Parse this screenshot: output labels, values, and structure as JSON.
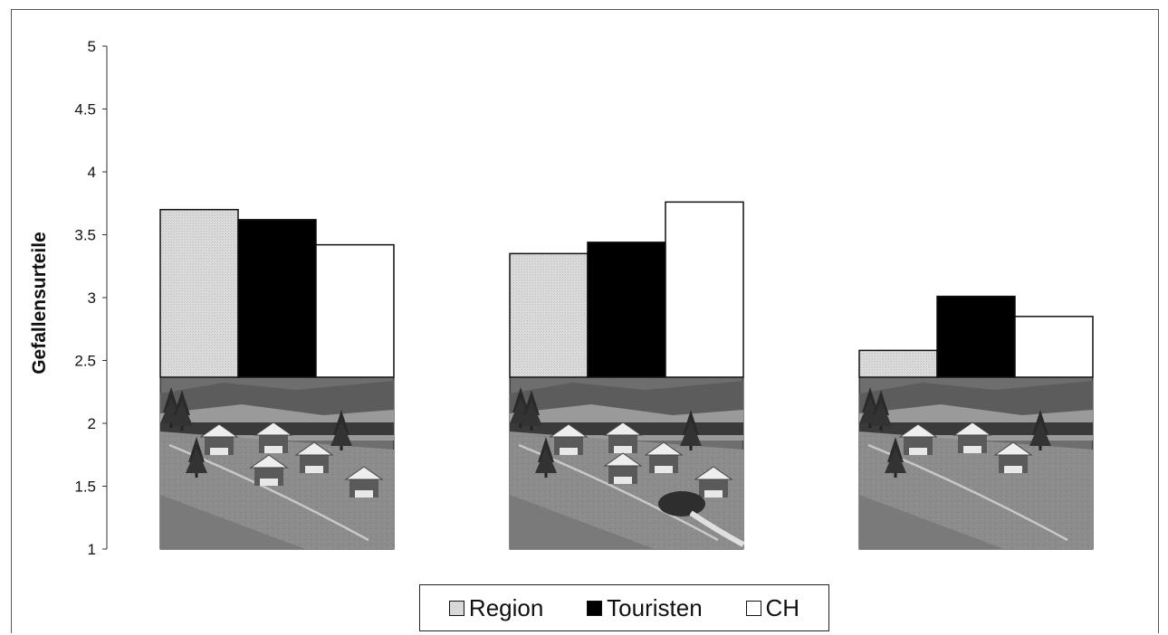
{
  "chart_data": {
    "type": "bar",
    "ylabel": "Gefallensurteile",
    "xlabel": "",
    "ylim": [
      1,
      5
    ],
    "yticks": [
      "1",
      "1.5",
      "2",
      "2.5",
      "3",
      "3.5",
      "4",
      "4.5",
      "5"
    ],
    "categories": [
      "",
      "",
      ""
    ],
    "category_images": [
      "alpine-village-photo-1",
      "alpine-village-photo-2",
      "alpine-village-photo-3"
    ],
    "series": [
      {
        "name": "Region",
        "values": [
          3.7,
          3.35,
          2.58
        ],
        "color": "#d8d8d8"
      },
      {
        "name": "Touristen",
        "values": [
          3.62,
          3.44,
          3.01
        ],
        "color": "#000000"
      },
      {
        "name": "CH",
        "values": [
          3.42,
          3.76,
          2.85
        ],
        "color": "#ffffff"
      }
    ],
    "grid": false,
    "legend_position": "bottom"
  },
  "legend": {
    "items": [
      {
        "label": "Region",
        "color": "#d8d8d8"
      },
      {
        "label": "Touristen",
        "color": "#000000"
      },
      {
        "label": "CH",
        "color": "#ffffff"
      }
    ]
  }
}
